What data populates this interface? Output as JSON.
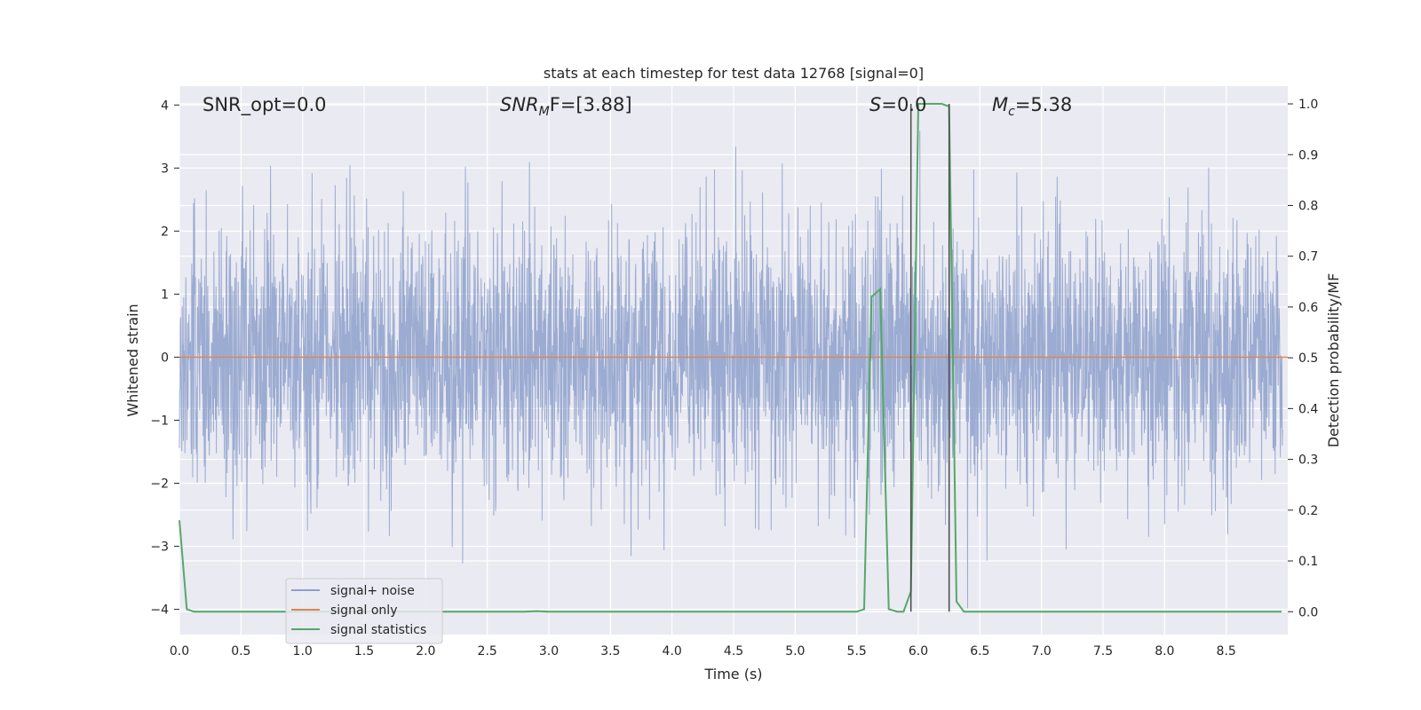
{
  "chart_data": {
    "type": "line",
    "title": "stats at each timestep for test data 12768 [signal=0]",
    "xlabel": "Time (s)",
    "ylabel": "Whitened strain",
    "y2label": "Detection probability/MF",
    "xlim": [
      0.0,
      9.0
    ],
    "ylim": [
      -4.4,
      4.3
    ],
    "y2lim": [
      -0.045,
      1.035
    ],
    "xticks": [
      "0.0",
      "0.5",
      "1.0",
      "1.5",
      "2.0",
      "2.5",
      "3.0",
      "3.5",
      "4.0",
      "4.5",
      "5.0",
      "5.5",
      "6.0",
      "6.5",
      "7.0",
      "7.5",
      "8.0",
      "8.5"
    ],
    "yticks": [
      "4",
      "3",
      "2",
      "1",
      "0",
      "−1",
      "−2",
      "−3",
      "−4"
    ],
    "y2ticks": [
      "1.0",
      "0.9",
      "0.8",
      "0.7",
      "0.6",
      "0.5",
      "0.4",
      "0.3",
      "0.2",
      "0.1",
      "0.0"
    ],
    "grid": true,
    "legend_position": "lower-left",
    "annotations": {
      "snr_opt": "SNR_opt=0.0",
      "snr_mf_main": "SNR",
      "snr_mf_sub": "M",
      "snr_mf_tail": "F=[3.88]",
      "s_main": "S",
      "s_tail": "=0.0",
      "mc_main": "M",
      "mc_sub": "c",
      "mc_tail": "=5.38"
    },
    "vlines_x": [
      5.94,
      6.25
    ],
    "series": [
      {
        "name": "signal+ noise",
        "color": "#8da0cb",
        "axis": "left",
        "description_range": [
          -4.0,
          3.9
        ],
        "sample_rate": 400,
        "seed": 12768
      },
      {
        "name": "signal only",
        "color": "#dd8452",
        "axis": "left",
        "x": [
          0.0,
          9.0
        ],
        "y": [
          0.0,
          0.0
        ]
      },
      {
        "name": "signal statistics",
        "color": "#55a868",
        "axis": "right",
        "x": [
          0.0,
          0.06,
          0.12,
          1.0,
          2.0,
          2.8,
          2.9,
          3.0,
          4.0,
          5.0,
          5.5,
          5.56,
          5.62,
          5.69,
          5.76,
          5.83,
          5.88,
          5.94,
          6.0,
          6.06,
          6.19,
          6.25,
          6.31,
          6.37,
          7.0,
          8.0,
          8.95
        ],
        "y": [
          0.18,
          0.005,
          0.0,
          0.0,
          0.0,
          0.0,
          0.001,
          0.0,
          0.0,
          0.0,
          0.0,
          0.005,
          0.62,
          0.635,
          0.005,
          0.0,
          0.0,
          0.04,
          1.0,
          1.0,
          1.0,
          0.995,
          0.02,
          0.0,
          0.0,
          0.0,
          0.0
        ]
      }
    ]
  }
}
